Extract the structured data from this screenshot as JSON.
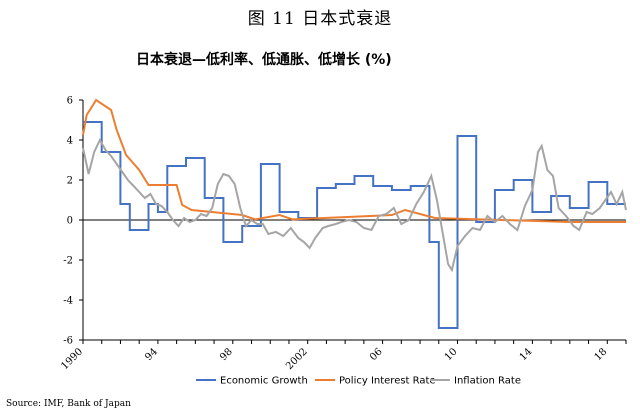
{
  "caption": "图 11 日本式衰退",
  "source": "Source: IMF, Bank of Japan",
  "colors": {
    "growth": "#4472c4",
    "policy": "#ed7d31",
    "inflation": "#a5a5a5",
    "axis": "#000000"
  },
  "chart_data": {
    "type": "line",
    "title": "日本衰退—低利率、低通胀、低增长 (%)",
    "xlabel": "",
    "ylabel": "",
    "xlim": [
      1990,
      2019
    ],
    "ylim": [
      -6,
      6
    ],
    "y_ticks": [
      6,
      4,
      2,
      0,
      -2,
      -4,
      -6
    ],
    "x_ticks": [
      {
        "value": 1990,
        "label": "1990"
      },
      {
        "value": 1994,
        "label": "94"
      },
      {
        "value": 1998,
        "label": "98"
      },
      {
        "value": 2002,
        "label": "2002"
      },
      {
        "value": 2006,
        "label": "06"
      },
      {
        "value": 2010,
        "label": "10"
      },
      {
        "value": 2014,
        "label": "14"
      },
      {
        "value": 2018,
        "label": "18"
      }
    ],
    "grid": false,
    "legend_position": "bottom",
    "series": [
      {
        "name": "Economic Growth",
        "color": "#4472c4",
        "step": true,
        "points": [
          [
            1990.0,
            4.9
          ],
          [
            1991.0,
            3.4
          ],
          [
            1992.0,
            0.8
          ],
          [
            1992.5,
            -0.5
          ],
          [
            1993.5,
            0.8
          ],
          [
            1994.0,
            0.4
          ],
          [
            1994.5,
            2.7
          ],
          [
            1995.5,
            3.1
          ],
          [
            1996.5,
            1.1
          ],
          [
            1997.5,
            -1.1
          ],
          [
            1998.5,
            -0.3
          ],
          [
            1999.5,
            2.8
          ],
          [
            2000.5,
            0.4
          ],
          [
            2001.5,
            0.1
          ],
          [
            2002.5,
            1.6
          ],
          [
            2003.5,
            1.8
          ],
          [
            2004.5,
            2.2
          ],
          [
            2005.5,
            1.7
          ],
          [
            2006.5,
            1.5
          ],
          [
            2007.5,
            1.7
          ],
          [
            2008.5,
            -1.1
          ],
          [
            2009.0,
            -5.4
          ],
          [
            2010.0,
            4.2
          ],
          [
            2011.0,
            -0.1
          ],
          [
            2012.0,
            1.5
          ],
          [
            2013.0,
            2.0
          ],
          [
            2014.0,
            0.4
          ],
          [
            2015.0,
            1.2
          ],
          [
            2016.0,
            0.6
          ],
          [
            2017.0,
            1.9
          ],
          [
            2018.0,
            0.8
          ],
          [
            2019.0,
            0.8
          ]
        ]
      },
      {
        "name": "Policy Interest Rate",
        "color": "#ed7d31",
        "step": false,
        "points": [
          [
            1990.0,
            4.25
          ],
          [
            1990.2,
            5.25
          ],
          [
            1990.7,
            6.0
          ],
          [
            1991.5,
            5.5
          ],
          [
            1991.8,
            4.5
          ],
          [
            1992.3,
            3.25
          ],
          [
            1993.0,
            2.5
          ],
          [
            1993.5,
            1.75
          ],
          [
            1995.0,
            1.75
          ],
          [
            1995.3,
            0.75
          ],
          [
            1995.8,
            0.5
          ],
          [
            1998.5,
            0.25
          ],
          [
            1999.2,
            0.03
          ],
          [
            2000.5,
            0.25
          ],
          [
            2001.2,
            0.03
          ],
          [
            2006.5,
            0.25
          ],
          [
            2007.2,
            0.5
          ],
          [
            2008.8,
            0.1
          ],
          [
            2016.0,
            -0.1
          ],
          [
            2019.0,
            -0.1
          ]
        ]
      },
      {
        "name": "Inflation Rate",
        "color": "#a5a5a5",
        "step": false,
        "points": [
          [
            1990.0,
            3.6
          ],
          [
            1990.3,
            2.3
          ],
          [
            1990.6,
            3.4
          ],
          [
            1990.9,
            4.0
          ],
          [
            1991.2,
            3.5
          ],
          [
            1991.5,
            3.2
          ],
          [
            1991.8,
            2.8
          ],
          [
            1992.1,
            2.4
          ],
          [
            1992.4,
            2.0
          ],
          [
            1992.7,
            1.7
          ],
          [
            1993.0,
            1.4
          ],
          [
            1993.3,
            1.1
          ],
          [
            1993.6,
            1.3
          ],
          [
            1993.9,
            0.8
          ],
          [
            1994.2,
            0.7
          ],
          [
            1994.5,
            0.4
          ],
          [
            1994.8,
            0.0
          ],
          [
            1995.1,
            -0.3
          ],
          [
            1995.4,
            0.1
          ],
          [
            1995.7,
            -0.1
          ],
          [
            1996.0,
            0.0
          ],
          [
            1996.3,
            0.3
          ],
          [
            1996.6,
            0.2
          ],
          [
            1996.9,
            0.6
          ],
          [
            1997.2,
            1.8
          ],
          [
            1997.5,
            2.3
          ],
          [
            1997.8,
            2.2
          ],
          [
            1998.1,
            1.8
          ],
          [
            1998.4,
            0.6
          ],
          [
            1998.7,
            -0.3
          ],
          [
            1999.0,
            0.0
          ],
          [
            1999.3,
            -0.2
          ],
          [
            1999.6,
            -0.2
          ],
          [
            1999.9,
            -0.7
          ],
          [
            2000.3,
            -0.6
          ],
          [
            2000.7,
            -0.8
          ],
          [
            2001.1,
            -0.4
          ],
          [
            2001.5,
            -0.9
          ],
          [
            2001.8,
            -1.1
          ],
          [
            2002.1,
            -1.4
          ],
          [
            2002.4,
            -0.9
          ],
          [
            2002.8,
            -0.4
          ],
          [
            2003.1,
            -0.3
          ],
          [
            2003.5,
            -0.2
          ],
          [
            2003.8,
            -0.1
          ],
          [
            2004.2,
            0.0
          ],
          [
            2004.6,
            -0.1
          ],
          [
            2005.0,
            -0.4
          ],
          [
            2005.4,
            -0.5
          ],
          [
            2005.8,
            0.2
          ],
          [
            2006.2,
            0.3
          ],
          [
            2006.6,
            0.6
          ],
          [
            2007.0,
            -0.2
          ],
          [
            2007.4,
            0.0
          ],
          [
            2007.8,
            0.8
          ],
          [
            2008.2,
            1.4
          ],
          [
            2008.6,
            2.2
          ],
          [
            2008.9,
            1.0
          ],
          [
            2009.2,
            -0.6
          ],
          [
            2009.5,
            -2.2
          ],
          [
            2009.7,
            -2.5
          ],
          [
            2010.0,
            -1.3
          ],
          [
            2010.4,
            -0.8
          ],
          [
            2010.8,
            -0.4
          ],
          [
            2011.2,
            -0.5
          ],
          [
            2011.6,
            0.2
          ],
          [
            2012.0,
            -0.1
          ],
          [
            2012.4,
            0.2
          ],
          [
            2012.8,
            -0.2
          ],
          [
            2013.2,
            -0.5
          ],
          [
            2013.6,
            0.7
          ],
          [
            2014.0,
            1.5
          ],
          [
            2014.3,
            3.4
          ],
          [
            2014.5,
            3.7
          ],
          [
            2014.8,
            2.5
          ],
          [
            2015.1,
            2.2
          ],
          [
            2015.4,
            0.6
          ],
          [
            2015.8,
            0.2
          ],
          [
            2016.2,
            -0.3
          ],
          [
            2016.5,
            -0.5
          ],
          [
            2016.9,
            0.4
          ],
          [
            2017.2,
            0.3
          ],
          [
            2017.6,
            0.6
          ],
          [
            2017.9,
            1.0
          ],
          [
            2018.2,
            1.4
          ],
          [
            2018.5,
            0.8
          ],
          [
            2018.8,
            1.4
          ],
          [
            2019.0,
            0.5
          ]
        ]
      }
    ]
  }
}
